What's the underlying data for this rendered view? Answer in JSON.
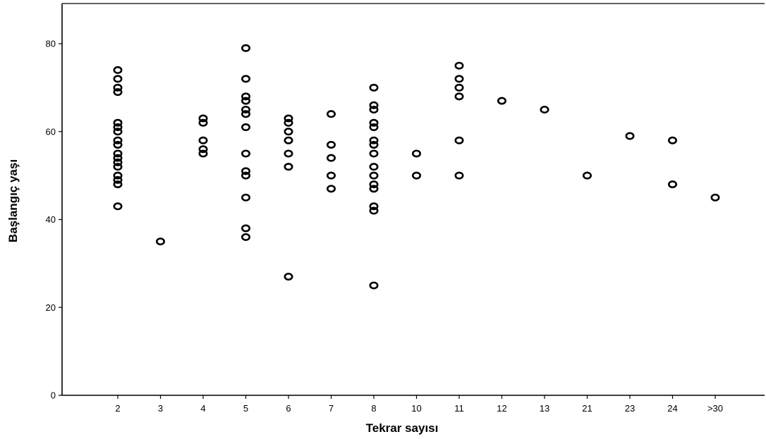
{
  "chart_data": {
    "type": "scatter",
    "title": "",
    "xlabel": "Tekrar sayısı",
    "ylabel": "Başlangıç yaşı",
    "x_axis": {
      "scale": "categorical",
      "categories": [
        "2",
        "3",
        "4",
        "5",
        "6",
        "7",
        "8",
        "10",
        "11",
        "12",
        "13",
        "21",
        "23",
        "24",
        ">30"
      ]
    },
    "y_axis": {
      "scale": "linear",
      "ylim": [
        0,
        85
      ],
      "ticks": [
        0,
        20,
        40,
        60,
        80
      ]
    },
    "grid": false,
    "legend": "none",
    "marker": "open-circle",
    "marker_color": "#000000",
    "series": [
      {
        "points": [
          {
            "x": "2",
            "y": 74
          },
          {
            "x": "2",
            "y": 72
          },
          {
            "x": "2",
            "y": 70
          },
          {
            "x": "2",
            "y": 69
          },
          {
            "x": "2",
            "y": 62
          },
          {
            "x": "2",
            "y": 61
          },
          {
            "x": "2",
            "y": 60
          },
          {
            "x": "2",
            "y": 58
          },
          {
            "x": "2",
            "y": 57
          },
          {
            "x": "2",
            "y": 55
          },
          {
            "x": "2",
            "y": 54
          },
          {
            "x": "2",
            "y": 53
          },
          {
            "x": "2",
            "y": 52
          },
          {
            "x": "2",
            "y": 50
          },
          {
            "x": "2",
            "y": 49
          },
          {
            "x": "2",
            "y": 48
          },
          {
            "x": "2",
            "y": 43
          },
          {
            "x": "3",
            "y": 35
          },
          {
            "x": "4",
            "y": 63
          },
          {
            "x": "4",
            "y": 62
          },
          {
            "x": "4",
            "y": 58
          },
          {
            "x": "4",
            "y": 56
          },
          {
            "x": "4",
            "y": 55
          },
          {
            "x": "5",
            "y": 79
          },
          {
            "x": "5",
            "y": 72
          },
          {
            "x": "5",
            "y": 68
          },
          {
            "x": "5",
            "y": 67
          },
          {
            "x": "5",
            "y": 65
          },
          {
            "x": "5",
            "y": 64
          },
          {
            "x": "5",
            "y": 61
          },
          {
            "x": "5",
            "y": 55
          },
          {
            "x": "5",
            "y": 51
          },
          {
            "x": "5",
            "y": 50
          },
          {
            "x": "5",
            "y": 45
          },
          {
            "x": "5",
            "y": 38
          },
          {
            "x": "5",
            "y": 36
          },
          {
            "x": "6",
            "y": 63
          },
          {
            "x": "6",
            "y": 62
          },
          {
            "x": "6",
            "y": 60
          },
          {
            "x": "6",
            "y": 58
          },
          {
            "x": "6",
            "y": 55
          },
          {
            "x": "6",
            "y": 52
          },
          {
            "x": "6",
            "y": 27
          },
          {
            "x": "7",
            "y": 64
          },
          {
            "x": "7",
            "y": 57
          },
          {
            "x": "7",
            "y": 54
          },
          {
            "x": "7",
            "y": 50
          },
          {
            "x": "7",
            "y": 47
          },
          {
            "x": "8",
            "y": 70
          },
          {
            "x": "8",
            "y": 66
          },
          {
            "x": "8",
            "y": 65
          },
          {
            "x": "8",
            "y": 62
          },
          {
            "x": "8",
            "y": 61
          },
          {
            "x": "8",
            "y": 58
          },
          {
            "x": "8",
            "y": 57
          },
          {
            "x": "8",
            "y": 55
          },
          {
            "x": "8",
            "y": 52
          },
          {
            "x": "8",
            "y": 50
          },
          {
            "x": "8",
            "y": 48
          },
          {
            "x": "8",
            "y": 47
          },
          {
            "x": "8",
            "y": 43
          },
          {
            "x": "8",
            "y": 42
          },
          {
            "x": "8",
            "y": 25
          },
          {
            "x": "10",
            "y": 55
          },
          {
            "x": "10",
            "y": 50
          },
          {
            "x": "11",
            "y": 75
          },
          {
            "x": "11",
            "y": 72
          },
          {
            "x": "11",
            "y": 70
          },
          {
            "x": "11",
            "y": 68
          },
          {
            "x": "11",
            "y": 58
          },
          {
            "x": "11",
            "y": 50
          },
          {
            "x": "12",
            "y": 67
          },
          {
            "x": "13",
            "y": 65
          },
          {
            "x": "21",
            "y": 50
          },
          {
            "x": "23",
            "y": 59
          },
          {
            "x": "24",
            "y": 58
          },
          {
            "x": "24",
            "y": 48
          },
          {
            "x": ">30",
            "y": 45
          }
        ]
      }
    ]
  }
}
